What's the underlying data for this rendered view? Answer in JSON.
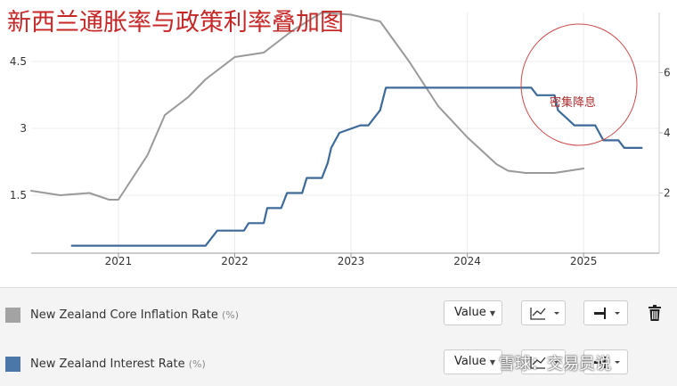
{
  "chart_data": {
    "type": "line",
    "title": "新西兰通胀率与政策利率叠加图",
    "x_ticks": [
      "2021",
      "2022",
      "2023",
      "2024",
      "2025"
    ],
    "xlim": [
      2020.25,
      2025.65
    ],
    "y_left_ticks": [
      1.5,
      3,
      4.5
    ],
    "y_left_lim": [
      0.2,
      5.6
    ],
    "y_right_ticks": [
      2,
      4,
      6
    ],
    "y_right_lim": [
      0.0,
      8.0
    ],
    "grid": true,
    "annotation": "密集降息",
    "series": [
      {
        "name": "New Zealand Core Inflation Rate",
        "unit": "(%)",
        "axis": "left",
        "color": "#999999",
        "x": [
          2020.25,
          2020.5,
          2020.75,
          2020.92,
          2021.0,
          2021.25,
          2021.4,
          2021.6,
          2021.75,
          2022.0,
          2022.25,
          2022.5,
          2022.75,
          2023.0,
          2023.25,
          2023.5,
          2023.75,
          2024.0,
          2024.25,
          2024.35,
          2024.5,
          2024.75,
          2025.0
        ],
        "y": [
          1.6,
          1.5,
          1.55,
          1.4,
          1.4,
          2.4,
          3.3,
          3.7,
          4.1,
          4.6,
          4.7,
          5.2,
          5.6,
          5.55,
          5.4,
          4.5,
          3.5,
          2.8,
          2.2,
          2.05,
          2.0,
          2.0,
          2.1
        ]
      },
      {
        "name": "New Zealand Interest Rate",
        "unit": "(%)",
        "axis": "right",
        "color": "#3d6a99",
        "x": [
          2020.6,
          2021.75,
          2021.8,
          2021.85,
          2022.08,
          2022.12,
          2022.25,
          2022.28,
          2022.4,
          2022.45,
          2022.58,
          2022.62,
          2022.75,
          2022.8,
          2022.83,
          2022.9,
          2023.08,
          2023.15,
          2023.25,
          2023.3,
          2024.55,
          2024.6,
          2024.75,
          2024.78,
          2024.85,
          2024.92,
          2025.1,
          2025.17,
          2025.3,
          2025.35,
          2025.5
        ],
        "y": [
          0.25,
          0.25,
          0.5,
          0.75,
          0.75,
          1.0,
          1.0,
          1.5,
          1.5,
          2.0,
          2.0,
          2.5,
          2.5,
          3.0,
          3.5,
          4.0,
          4.25,
          4.25,
          4.75,
          5.5,
          5.5,
          5.25,
          5.25,
          4.75,
          4.5,
          4.25,
          4.25,
          3.75,
          3.75,
          3.5,
          3.5
        ]
      }
    ]
  },
  "legend": {
    "rows": [
      {
        "label": "New Zealand Core Inflation Rate",
        "unit": "(%)",
        "color": "#a3a3a3",
        "value_button": "Value"
      },
      {
        "label": "New Zealand Interest Rate",
        "unit": "(%)",
        "color": "#4a76a8",
        "value_button": "Value"
      }
    ]
  },
  "watermark": "雪球：交易员说"
}
